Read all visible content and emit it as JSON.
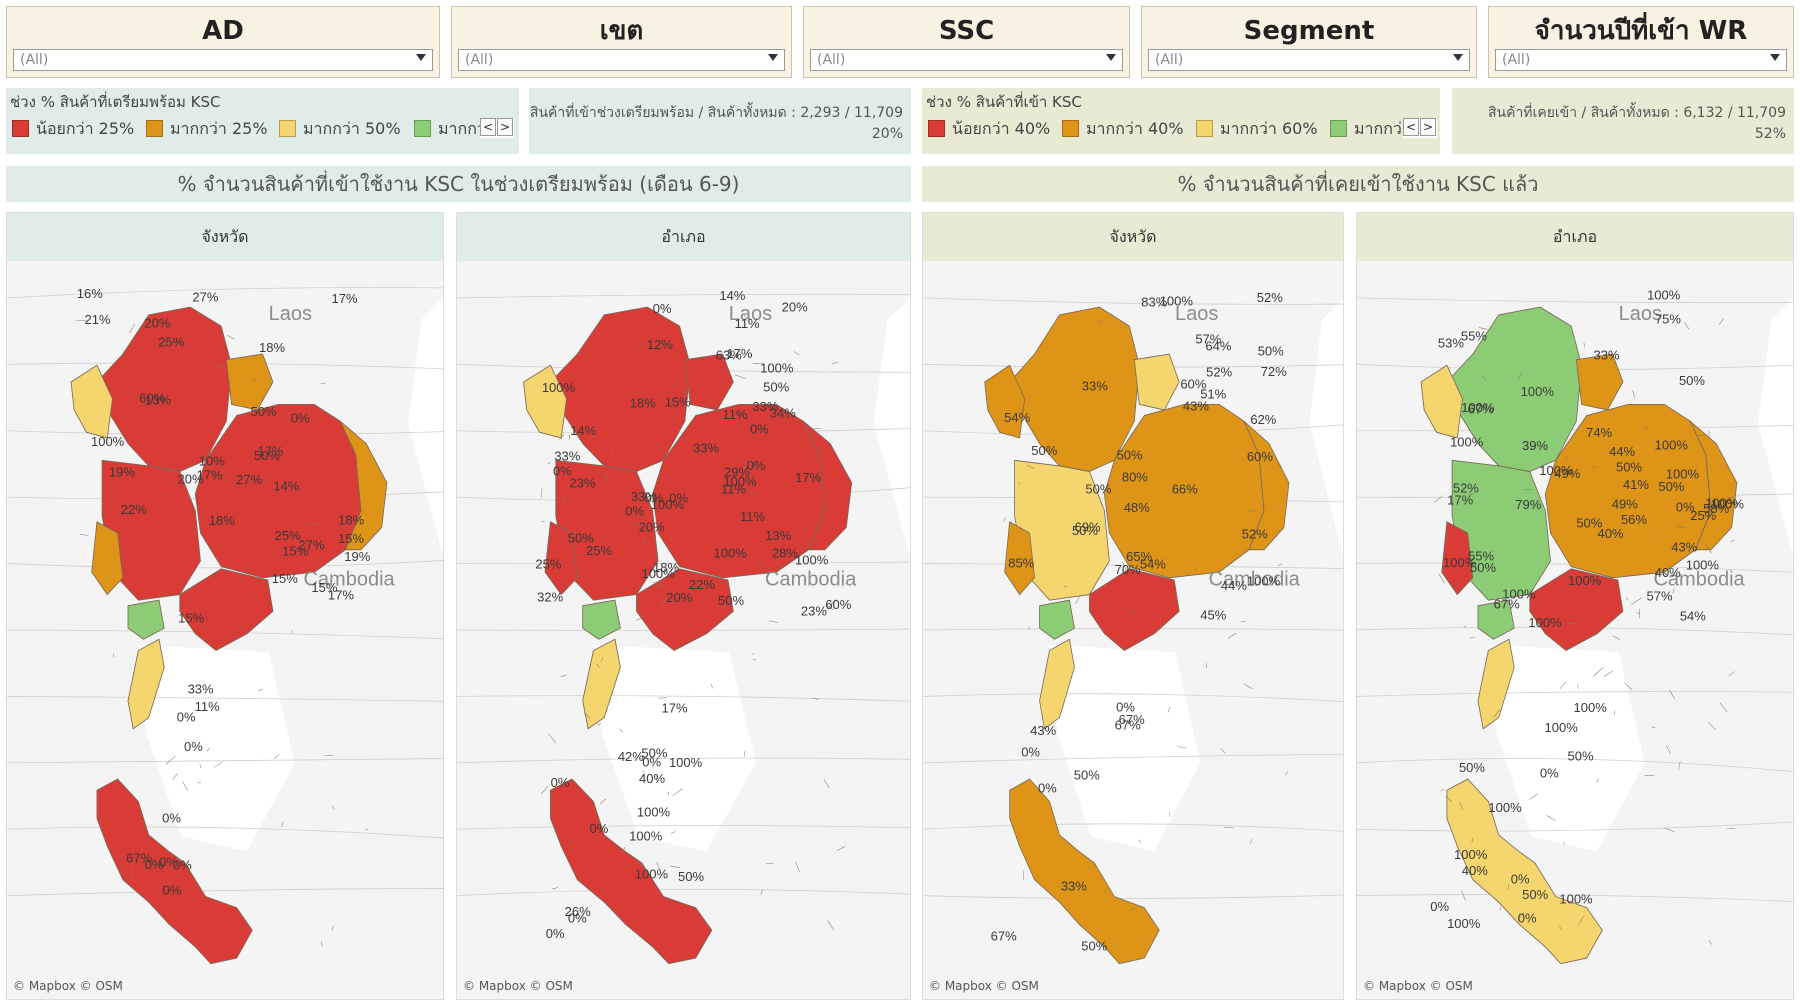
{
  "filters": [
    {
      "title": "AD",
      "value": "(All)"
    },
    {
      "title": "เขต",
      "value": "(All)"
    },
    {
      "title": "SSC",
      "value": "(All)"
    },
    {
      "title": "Segment",
      "value": "(All)"
    },
    {
      "title": "จำนวนปีที่เข้า WR",
      "value": "(All)"
    }
  ],
  "colors": {
    "red": "#d93b36",
    "orange": "#de9417",
    "yellow": "#f5d56d",
    "green": "#8ccc75",
    "blue_panel": "#e0ecea",
    "beige_panel": "#e9ead4",
    "land_bg": "#ededed",
    "sea": "#ffffff"
  },
  "legend_left": {
    "title": "ช่วง % สินค้าที่เตรียมพร้อม KSC",
    "items": [
      {
        "label": "น้อยกว่า 25%",
        "color": "red"
      },
      {
        "label": "มากกว่า 25%",
        "color": "orange"
      },
      {
        "label": "มากกว่า 50%",
        "color": "yellow"
      },
      {
        "label": "มากกว่",
        "color": "green"
      }
    ]
  },
  "kpi_left": {
    "label": "สินค้าที่เข้าช่วงเตรียมพร้อม / สินค้าทั้งหมด",
    "value": "2,293 / 11,709",
    "pct": "20%"
  },
  "legend_right": {
    "title": "ช่วง % สินค้าที่เข้า KSC",
    "items": [
      {
        "label": "น้อยกว่า 40%",
        "color": "red"
      },
      {
        "label": "มากกว่า 40%",
        "color": "orange"
      },
      {
        "label": "มากกว่า 60%",
        "color": "yellow"
      },
      {
        "label": "มากกว่",
        "color": "green"
      }
    ]
  },
  "kpi_right": {
    "label": "สินค้าที่เคยเข้า / สินค้าทั้งหมด",
    "value": "6,132 / 11,709",
    "pct": "52%"
  },
  "nav": {
    "prev": "<",
    "next": ">"
  },
  "sections": {
    "left": "% จำนวนสินค้าที่เข้าใช้งาน KSC ในช่วงเตรียมพร้อม (เดือน 6-9)",
    "right": "% จำนวนสินค้าที่เคยเข้าใช้งาน KSC แล้ว"
  },
  "maps": [
    {
      "header": "จังหวัด",
      "credit": "© Mapbox © OSM",
      "place_labels": [
        "Laos",
        "Cambodia"
      ],
      "regions": [
        {
          "id": "north",
          "color": "red"
        },
        {
          "id": "north_west",
          "color": "yellow"
        },
        {
          "id": "north_east",
          "color": "orange"
        },
        {
          "id": "central",
          "color": "red"
        },
        {
          "id": "isan",
          "color": "red"
        },
        {
          "id": "isan_east",
          "color": "orange"
        },
        {
          "id": "west",
          "color": "orange"
        },
        {
          "id": "east",
          "color": "red"
        },
        {
          "id": "south_upper",
          "color": "yellow"
        },
        {
          "id": "south",
          "color": "red"
        },
        {
          "id": "south_green",
          "color": "green"
        }
      ],
      "labels": [
        "16%",
        "10%",
        "50%",
        "50%",
        "17%",
        "17%",
        "27%",
        "20%",
        "15%",
        "18%",
        "15%",
        "19%",
        "14%",
        "17%",
        "27%",
        "18%",
        "17%",
        "15%",
        "20%",
        "15%",
        "15%",
        "27%",
        "25%",
        "13%",
        "25%",
        "19%",
        "18%",
        "21%",
        "100%",
        "60%",
        "22%",
        "0%",
        "0%",
        "0%",
        "0%",
        "67%",
        "11%",
        "0%",
        "0%",
        "0%",
        "33%",
        "0%"
      ]
    },
    {
      "header": "อำเภอ",
      "credit": "© Mapbox © OSM",
      "place_labels": [
        "Laos",
        "Cambodia"
      ],
      "regions": [
        {
          "id": "north",
          "color": "red"
        },
        {
          "id": "north_west",
          "color": "yellow"
        },
        {
          "id": "north_east",
          "color": "red"
        },
        {
          "id": "central",
          "color": "red"
        },
        {
          "id": "isan",
          "color": "red"
        },
        {
          "id": "isan_east",
          "color": "red"
        },
        {
          "id": "west",
          "color": "red"
        },
        {
          "id": "east",
          "color": "red"
        },
        {
          "id": "south_upper",
          "color": "yellow"
        },
        {
          "id": "south",
          "color": "red"
        },
        {
          "id": "south_green",
          "color": "green"
        }
      ],
      "labels": [
        "0%",
        "15%",
        "0%",
        "50%",
        "17%",
        "33%",
        "100%",
        "100%",
        "20%",
        "0%",
        "0%",
        "33%",
        "50%",
        "14%",
        "22%",
        "25%",
        "0%",
        "33%",
        "18%",
        "100%",
        "11%",
        "23%",
        "0%",
        "18%",
        "100%",
        "14%",
        "12%",
        "11%",
        "28%",
        "63%",
        "0%",
        "50%",
        "11%",
        "60%",
        "100%",
        "23%",
        "17%",
        "20%",
        "34%",
        "29%",
        "33%",
        "100%",
        "20%",
        "25%",
        "11%",
        "13%",
        "32%",
        "100%",
        "26%",
        "100%",
        "100%",
        "40%",
        "17%",
        "0%",
        "0%",
        "50%",
        "100%",
        "0%",
        "50%",
        "0%",
        "42%",
        "100%",
        "0%"
      ]
    },
    {
      "header": "จังหวัด",
      "credit": "© Mapbox © OSM",
      "place_labels": [
        "Laos",
        "Cambodia"
      ],
      "regions": [
        {
          "id": "north",
          "color": "orange"
        },
        {
          "id": "north_west",
          "color": "orange"
        },
        {
          "id": "north_east",
          "color": "yellow"
        },
        {
          "id": "central",
          "color": "yellow"
        },
        {
          "id": "isan",
          "color": "orange"
        },
        {
          "id": "isan_east",
          "color": "orange"
        },
        {
          "id": "west",
          "color": "orange"
        },
        {
          "id": "east",
          "color": "red"
        },
        {
          "id": "south_upper",
          "color": "yellow"
        },
        {
          "id": "south",
          "color": "orange"
        },
        {
          "id": "south_green",
          "color": "green"
        }
      ],
      "labels": [
        "83%",
        "57%",
        "50%",
        "65%",
        "80%",
        "60%",
        "62%",
        "50%",
        "43%",
        "48%",
        "64%",
        "72%",
        "70%",
        "66%",
        "45%",
        "50%",
        "44%",
        "52%",
        "54%",
        "50%",
        "69%",
        "85%",
        "52%",
        "54%",
        "52%",
        "50%",
        "100%",
        "51%",
        "100%",
        "60%",
        "33%",
        "0%",
        "50%",
        "0%",
        "67%",
        "33%",
        "0%",
        "67%",
        "50%",
        "67%",
        "43%"
      ]
    },
    {
      "header": "อำเภอ",
      "credit": "© Mapbox © OSM",
      "place_labels": [
        "Laos",
        "Cambodia"
      ],
      "regions": [
        {
          "id": "north",
          "color": "green"
        },
        {
          "id": "north_west",
          "color": "yellow"
        },
        {
          "id": "north_east",
          "color": "orange"
        },
        {
          "id": "central",
          "color": "green"
        },
        {
          "id": "isan",
          "color": "orange"
        },
        {
          "id": "isan_east",
          "color": "orange"
        },
        {
          "id": "west",
          "color": "red"
        },
        {
          "id": "east",
          "color": "red"
        },
        {
          "id": "south_upper",
          "color": "yellow"
        },
        {
          "id": "south",
          "color": "yellow"
        },
        {
          "id": "south_green",
          "color": "green"
        }
      ],
      "labels": [
        "67%",
        "100%",
        "50%",
        "100%",
        "100%",
        "43%",
        "100%",
        "57%",
        "74%",
        "55%",
        "100%",
        "100%",
        "17%",
        "40%",
        "100%",
        "33%",
        "100%",
        "79%",
        "50%",
        "39%",
        "50%",
        "54%",
        "67%",
        "100%",
        "100%",
        "58%",
        "53%",
        "40%",
        "50%",
        "56%",
        "49%",
        "49%",
        "75%",
        "100%",
        "25%",
        "52%",
        "41%",
        "100%",
        "100%",
        "55%",
        "50%",
        "44%",
        "100%",
        "0%",
        "40%",
        "100%",
        "100%",
        "0%",
        "50%",
        "100%",
        "50%",
        "0%",
        "50%",
        "100%",
        "0%",
        "100%",
        "100%",
        "0%"
      ]
    }
  ]
}
